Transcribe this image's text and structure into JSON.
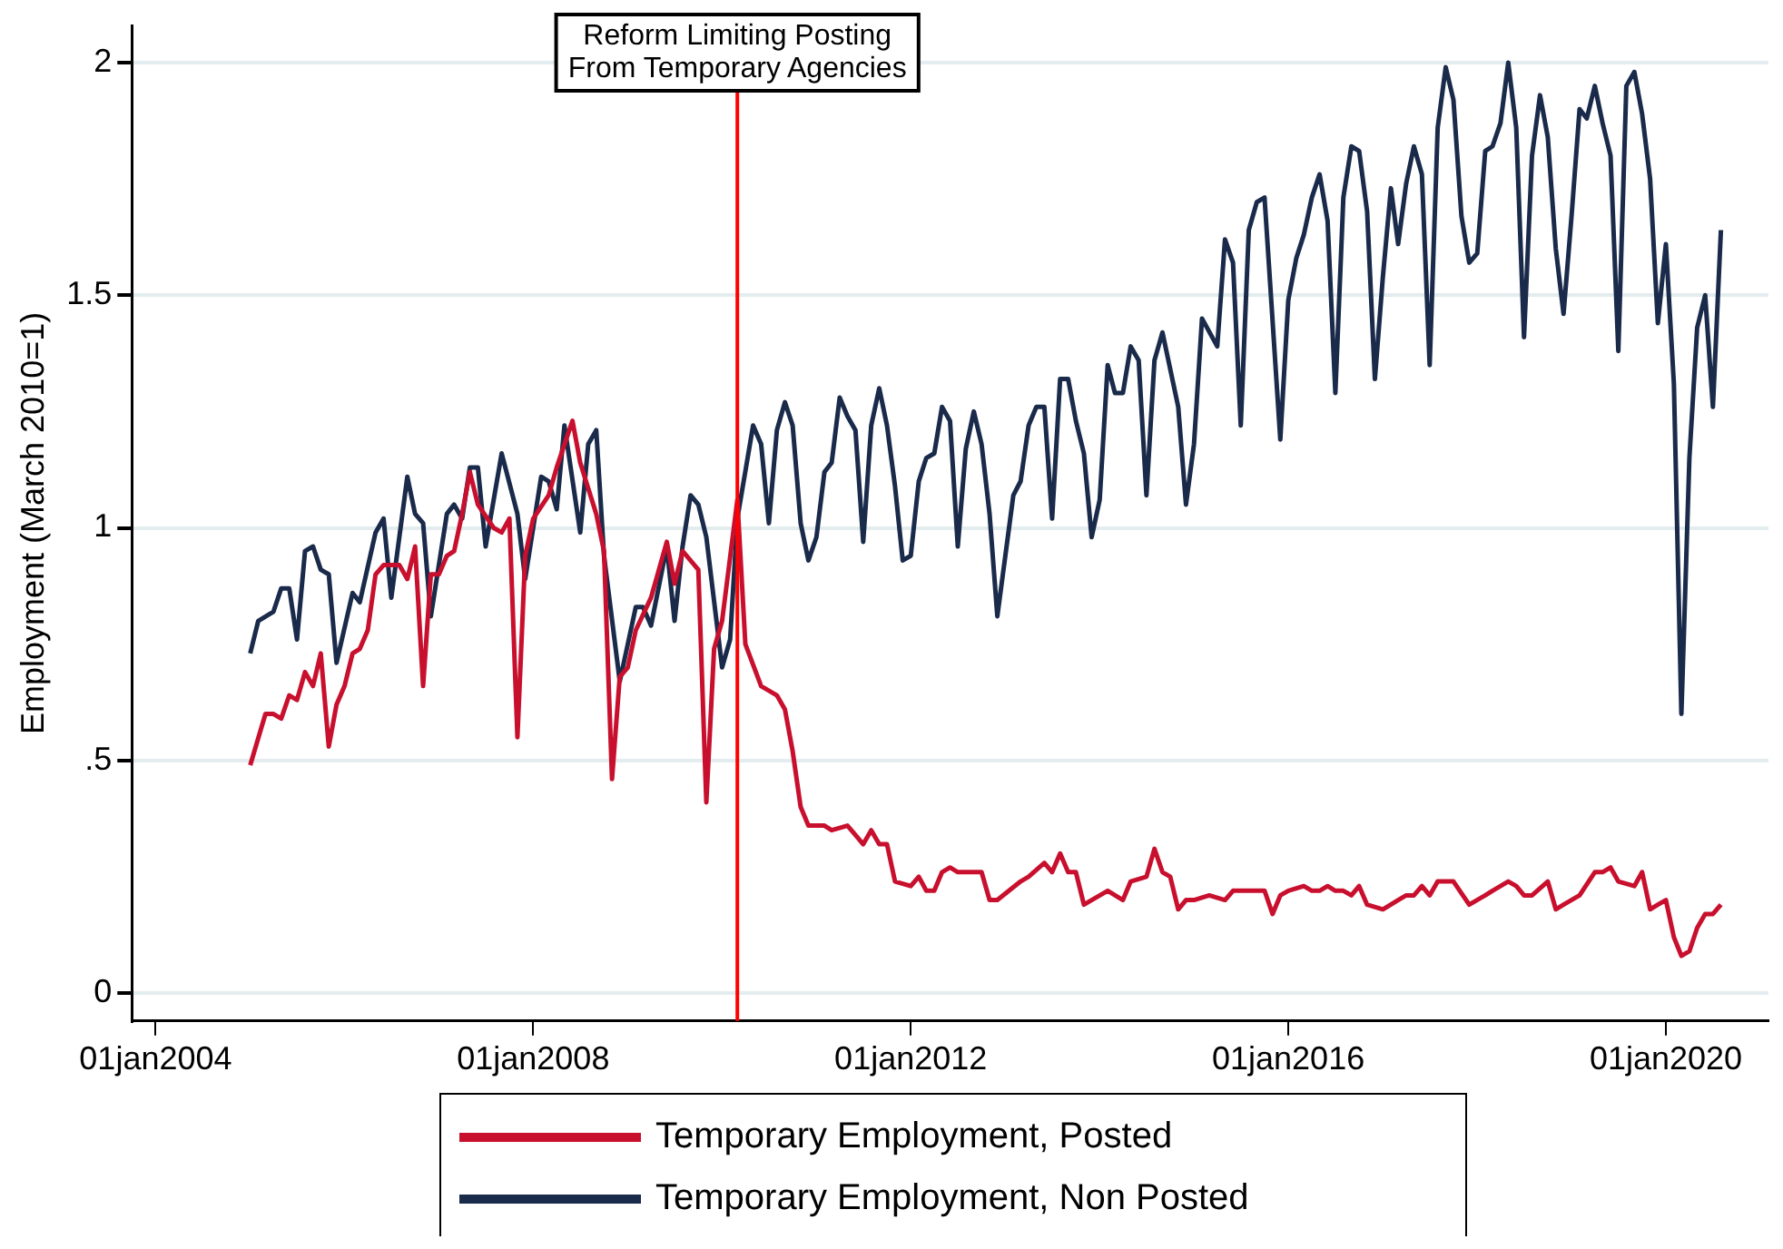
{
  "chart_data": {
    "type": "line",
    "ylabel": "Employment (March 2010=1)",
    "xlim": [
      "2003-10",
      "2021-02"
    ],
    "xticks": [
      {
        "value": "2004-01-01",
        "label": "01jan2004"
      },
      {
        "value": "2008-01-01",
        "label": "01jan2008"
      },
      {
        "value": "2012-01-01",
        "label": "01jan2012"
      },
      {
        "value": "2016-01-01",
        "label": "01jan2016"
      },
      {
        "value": "2020-01-01",
        "label": "01jan2020"
      }
    ],
    "ylim": [
      -0.06,
      2.08
    ],
    "yticks": [
      0,
      {
        "value": 0.5,
        "label": ".5"
      },
      1,
      1.5,
      2
    ],
    "grid": "y",
    "legend": "bottom",
    "marker": "none",
    "line_style": "solid",
    "ref_lines": [
      {
        "axis": "x",
        "value": "2010-03",
        "label": "Reform Limiting Posting\nFrom Temporary Agencies",
        "color": "#ff0000"
      }
    ],
    "series": [
      {
        "name": "Temporary Employment, Posted",
        "color": "#c8102e",
        "x": [
          "2005-01",
          "2005-03",
          "2005-04",
          "2005-05",
          "2005-06",
          "2005-07",
          "2005-08",
          "2005-09",
          "2005-10",
          "2005-11",
          "2005-12",
          "2006-01",
          "2006-02",
          "2006-03",
          "2006-04",
          "2006-05",
          "2006-06",
          "2006-08",
          "2006-09",
          "2006-10",
          "2006-11",
          "2006-12",
          "2007-01",
          "2007-02",
          "2007-03",
          "2007-04",
          "2007-05",
          "2007-06",
          "2007-08",
          "2007-09",
          "2007-10",
          "2007-11",
          "2007-12",
          "2008-01",
          "2008-03",
          "2008-04",
          "2008-06",
          "2008-07",
          "2008-09",
          "2008-10",
          "2008-11",
          "2008-12",
          "2009-01",
          "2009-02",
          "2009-04",
          "2009-06",
          "2009-07",
          "2009-08",
          "2009-10",
          "2009-11",
          "2009-12",
          "2010-01",
          "2010-03",
          "2010-04",
          "2010-06",
          "2010-08",
          "2010-09",
          "2010-10",
          "2010-11",
          "2010-12",
          "2011-01",
          "2011-02",
          "2011-03",
          "2011-05",
          "2011-06",
          "2011-07",
          "2011-08",
          "2011-09",
          "2011-10",
          "2011-11",
          "2012-01",
          "2012-02",
          "2012-03",
          "2012-04",
          "2012-05",
          "2012-06",
          "2012-07",
          "2012-10",
          "2012-11",
          "2012-12",
          "2013-03",
          "2013-04",
          "2013-06",
          "2013-07",
          "2013-08",
          "2013-09",
          "2013-10",
          "2013-11",
          "2013-12",
          "2014-02",
          "2014-04",
          "2014-05",
          "2014-07",
          "2014-08",
          "2014-09",
          "2014-10",
          "2014-11",
          "2014-12",
          "2015-01",
          "2015-03",
          "2015-05",
          "2015-06",
          "2015-07",
          "2015-09",
          "2015-10",
          "2015-11",
          "2015-12",
          "2016-01",
          "2016-03",
          "2016-04",
          "2016-05",
          "2016-06",
          "2016-07",
          "2016-08",
          "2016-09",
          "2016-10",
          "2016-11",
          "2017-01",
          "2017-03",
          "2017-04",
          "2017-05",
          "2017-06",
          "2017-07",
          "2017-08",
          "2017-10",
          "2017-12",
          "2018-02",
          "2018-03",
          "2018-05",
          "2018-06",
          "2018-07",
          "2018-08",
          "2018-10",
          "2018-11",
          "2018-12",
          "2019-02",
          "2019-04",
          "2019-05",
          "2019-06",
          "2019-07",
          "2019-09",
          "2019-10",
          "2019-11",
          "2019-12",
          "2020-01",
          "2020-02",
          "2020-03",
          "2020-04",
          "2020-05",
          "2020-06",
          "2020-07",
          "2020-08"
        ],
        "values": [
          0.49,
          0.6,
          0.6,
          0.59,
          0.64,
          0.63,
          0.69,
          0.66,
          0.73,
          0.53,
          0.62,
          0.66,
          0.73,
          0.74,
          0.78,
          0.9,
          0.92,
          0.92,
          0.89,
          0.96,
          0.66,
          0.9,
          0.9,
          0.94,
          0.95,
          1.03,
          1.12,
          1.05,
          1.0,
          0.99,
          1.02,
          0.55,
          0.94,
          1.02,
          1.07,
          1.13,
          1.23,
          1.14,
          1.03,
          0.95,
          0.46,
          0.68,
          0.7,
          0.78,
          0.85,
          0.97,
          0.88,
          0.95,
          0.91,
          0.41,
          0.74,
          0.8,
          1.06,
          0.75,
          0.66,
          0.64,
          0.61,
          0.52,
          0.4,
          0.36,
          0.36,
          0.36,
          0.35,
          0.36,
          0.34,
          0.32,
          0.35,
          0.32,
          0.32,
          0.24,
          0.23,
          0.25,
          0.22,
          0.22,
          0.26,
          0.27,
          0.26,
          0.26,
          0.2,
          0.2,
          0.24,
          0.25,
          0.28,
          0.26,
          0.3,
          0.26,
          0.26,
          0.19,
          0.2,
          0.22,
          0.2,
          0.24,
          0.25,
          0.31,
          0.26,
          0.25,
          0.18,
          0.2,
          0.2,
          0.21,
          0.2,
          0.22,
          0.22,
          0.22,
          0.22,
          0.17,
          0.21,
          0.22,
          0.23,
          0.22,
          0.22,
          0.23,
          0.22,
          0.22,
          0.21,
          0.23,
          0.19,
          0.18,
          0.2,
          0.21,
          0.21,
          0.23,
          0.21,
          0.24,
          0.24,
          0.19,
          0.21,
          0.22,
          0.24,
          0.23,
          0.21,
          0.21,
          0.24,
          0.18,
          0.19,
          0.21,
          0.26,
          0.26,
          0.27,
          0.24,
          0.23,
          0.26,
          0.18,
          0.19,
          0.2,
          0.12,
          0.08,
          0.09,
          0.14,
          0.17,
          0.17,
          0.19
        ]
      },
      {
        "name": "Temporary Employment, Non Posted",
        "color": "#1a2a4a",
        "x": [
          "2005-01",
          "2005-02",
          "2005-04",
          "2005-05",
          "2005-06",
          "2005-07",
          "2005-08",
          "2005-09",
          "2005-10",
          "2005-11",
          "2005-12",
          "2006-02",
          "2006-03",
          "2006-05",
          "2006-06",
          "2006-07",
          "2006-09",
          "2006-10",
          "2006-11",
          "2006-12",
          "2007-02",
          "2007-03",
          "2007-04",
          "2007-05",
          "2007-06",
          "2007-07",
          "2007-09",
          "2007-11",
          "2007-12",
          "2008-02",
          "2008-03",
          "2008-04",
          "2008-05",
          "2008-07",
          "2008-08",
          "2008-09",
          "2008-10",
          "2008-12",
          "2009-02",
          "2009-03",
          "2009-04",
          "2009-06",
          "2009-07",
          "2009-08",
          "2009-09",
          "2009-10",
          "2009-11",
          "2010-01",
          "2010-02",
          "2010-03",
          "2010-05",
          "2010-06",
          "2010-07",
          "2010-08",
          "2010-09",
          "2010-10",
          "2010-11",
          "2010-12",
          "2011-01",
          "2011-02",
          "2011-03",
          "2011-04",
          "2011-05",
          "2011-06",
          "2011-07",
          "2011-08",
          "2011-09",
          "2011-10",
          "2011-11",
          "2011-12",
          "2012-01",
          "2012-02",
          "2012-03",
          "2012-04",
          "2012-05",
          "2012-06",
          "2012-07",
          "2012-08",
          "2012-09",
          "2012-10",
          "2012-11",
          "2012-12",
          "2013-02",
          "2013-03",
          "2013-04",
          "2013-05",
          "2013-06",
          "2013-07",
          "2013-08",
          "2013-09",
          "2013-10",
          "2013-11",
          "2013-12",
          "2014-01",
          "2014-02",
          "2014-03",
          "2014-04",
          "2014-05",
          "2014-06",
          "2014-07",
          "2014-08",
          "2014-09",
          "2014-11",
          "2014-12",
          "2015-01",
          "2015-02",
          "2015-04",
          "2015-05",
          "2015-06",
          "2015-07",
          "2015-08",
          "2015-09",
          "2015-10",
          "2015-12",
          "2016-01",
          "2016-02",
          "2016-03",
          "2016-04",
          "2016-05",
          "2016-06",
          "2016-07",
          "2016-08",
          "2016-09",
          "2016-10",
          "2016-11",
          "2016-12",
          "2017-01",
          "2017-02",
          "2017-03",
          "2017-04",
          "2017-05",
          "2017-06",
          "2017-07",
          "2017-08",
          "2017-09",
          "2017-10",
          "2017-11",
          "2017-12",
          "2018-01",
          "2018-02",
          "2018-03",
          "2018-04",
          "2018-05",
          "2018-06",
          "2018-07",
          "2018-08",
          "2018-09",
          "2018-10",
          "2018-11",
          "2018-12",
          "2019-01",
          "2019-02",
          "2019-03",
          "2019-04",
          "2019-05",
          "2019-06",
          "2019-07",
          "2019-08",
          "2019-09",
          "2019-10",
          "2019-11",
          "2019-12",
          "2020-01",
          "2020-02",
          "2020-03",
          "2020-04",
          "2020-05",
          "2020-06",
          "2020-07",
          "2020-08"
        ],
        "values": [
          0.73,
          0.8,
          0.82,
          0.87,
          0.87,
          0.76,
          0.95,
          0.96,
          0.91,
          0.9,
          0.71,
          0.86,
          0.84,
          0.99,
          1.02,
          0.85,
          1.11,
          1.03,
          1.01,
          0.81,
          1.03,
          1.05,
          1.02,
          1.13,
          1.13,
          0.96,
          1.16,
          1.03,
          0.89,
          1.11,
          1.1,
          1.04,
          1.22,
          0.99,
          1.18,
          1.21,
          0.94,
          0.67,
          0.83,
          0.83,
          0.79,
          0.96,
          0.8,
          0.96,
          1.07,
          1.05,
          0.98,
          0.7,
          0.76,
          1.02,
          1.22,
          1.18,
          1.01,
          1.21,
          1.27,
          1.22,
          1.01,
          0.93,
          0.98,
          1.12,
          1.14,
          1.28,
          1.24,
          1.21,
          0.97,
          1.22,
          1.3,
          1.22,
          1.09,
          0.93,
          0.94,
          1.1,
          1.15,
          1.16,
          1.26,
          1.23,
          0.96,
          1.17,
          1.25,
          1.18,
          1.03,
          0.81,
          1.07,
          1.1,
          1.22,
          1.26,
          1.26,
          1.02,
          1.32,
          1.32,
          1.23,
          1.16,
          0.98,
          1.06,
          1.35,
          1.29,
          1.29,
          1.39,
          1.36,
          1.07,
          1.36,
          1.42,
          1.26,
          1.05,
          1.18,
          1.45,
          1.39,
          1.62,
          1.57,
          1.22,
          1.64,
          1.7,
          1.71,
          1.19,
          1.49,
          1.58,
          1.63,
          1.71,
          1.76,
          1.66,
          1.29,
          1.71,
          1.82,
          1.81,
          1.68,
          1.32,
          1.54,
          1.73,
          1.61,
          1.74,
          1.82,
          1.76,
          1.35,
          1.86,
          1.99,
          1.92,
          1.67,
          1.57,
          1.59,
          1.81,
          1.82,
          1.87,
          2.0,
          1.86,
          1.41,
          1.8,
          1.93,
          1.84,
          1.6,
          1.46,
          1.67,
          1.9,
          1.88,
          1.95,
          1.87,
          1.8,
          1.38,
          1.95,
          1.98,
          1.89,
          1.75,
          1.44,
          1.61,
          1.31,
          0.6,
          1.15,
          1.43,
          1.5,
          1.26,
          1.64
        ]
      }
    ]
  }
}
